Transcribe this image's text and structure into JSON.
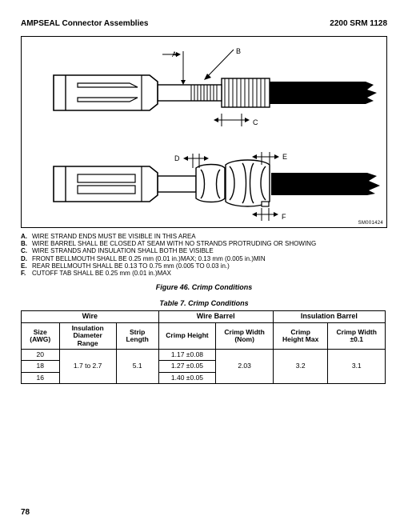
{
  "header": {
    "left": "AMPSEAL Connector Assemblies",
    "right": "2200 SRM 1128"
  },
  "figure": {
    "sm_label": "SM001424",
    "callouts": {
      "A": "A",
      "B": "B",
      "C": "C",
      "D": "D",
      "E": "E",
      "F": "F"
    },
    "colors": {
      "stroke": "#000000",
      "fill_dark": "#000000",
      "fill_white": "#ffffff",
      "hatch": "#000000"
    },
    "stroke_width": 1.4
  },
  "notes": [
    {
      "k": "A.",
      "t": "WIRE STRAND ENDS MUST BE VISIBLE IN THIS AREA"
    },
    {
      "k": "B.",
      "t": "WIRE BARREL SHALL BE CLOSED AT SEAM WITH NO STRANDS PROTRUDING OR SHOWING"
    },
    {
      "k": "C.",
      "t": "WIRE STRANDS AND INSULATION SHALL BOTH BE VISIBLE"
    },
    {
      "k": "D.",
      "t": "FRONT BELLMOUTH SHALL BE 0.25 mm (0.01 in.)MAX; 0.13 mm (0.005 in.)MIN"
    },
    {
      "k": "E.",
      "t": "REAR BELLMOUTH SHALL BE 0.13 TO 0.75 mm (0.005 TO 0.03 in.)"
    },
    {
      "k": "F.",
      "t": "CUTOFF TAB SHALL BE 0.25 mm (0.01 in.)MAX"
    }
  ],
  "figure_caption": "Figure 46. Crimp Conditions",
  "table_caption": "Table 7.  Crimp Conditions",
  "table": {
    "group_headers": [
      "Wire",
      "Wire Barrel",
      "Insulation Barrel"
    ],
    "col_headers": [
      "Size\n(AWG)",
      "Insulation\nDiameter\nRange",
      "Strip\nLength",
      "Crimp Height",
      "Crimp Width\n(Nom)",
      "Crimp\nHeight Max",
      "Crimp Width\n±0.1"
    ],
    "rows": [
      {
        "size": "20",
        "crimp_height": "1.17 ±0.08"
      },
      {
        "size": "18",
        "crimp_height": "1.27 ±0.05"
      },
      {
        "size": "16",
        "crimp_height": "1.40 ±0.05"
      }
    ],
    "merged": {
      "ins_dia_range": "1.7 to 2.7",
      "strip_length": "5.1",
      "crimp_width_nom": "2.03",
      "crimp_height_max": "3.2",
      "crimp_width_01": "3.1"
    }
  },
  "page_number": "78"
}
